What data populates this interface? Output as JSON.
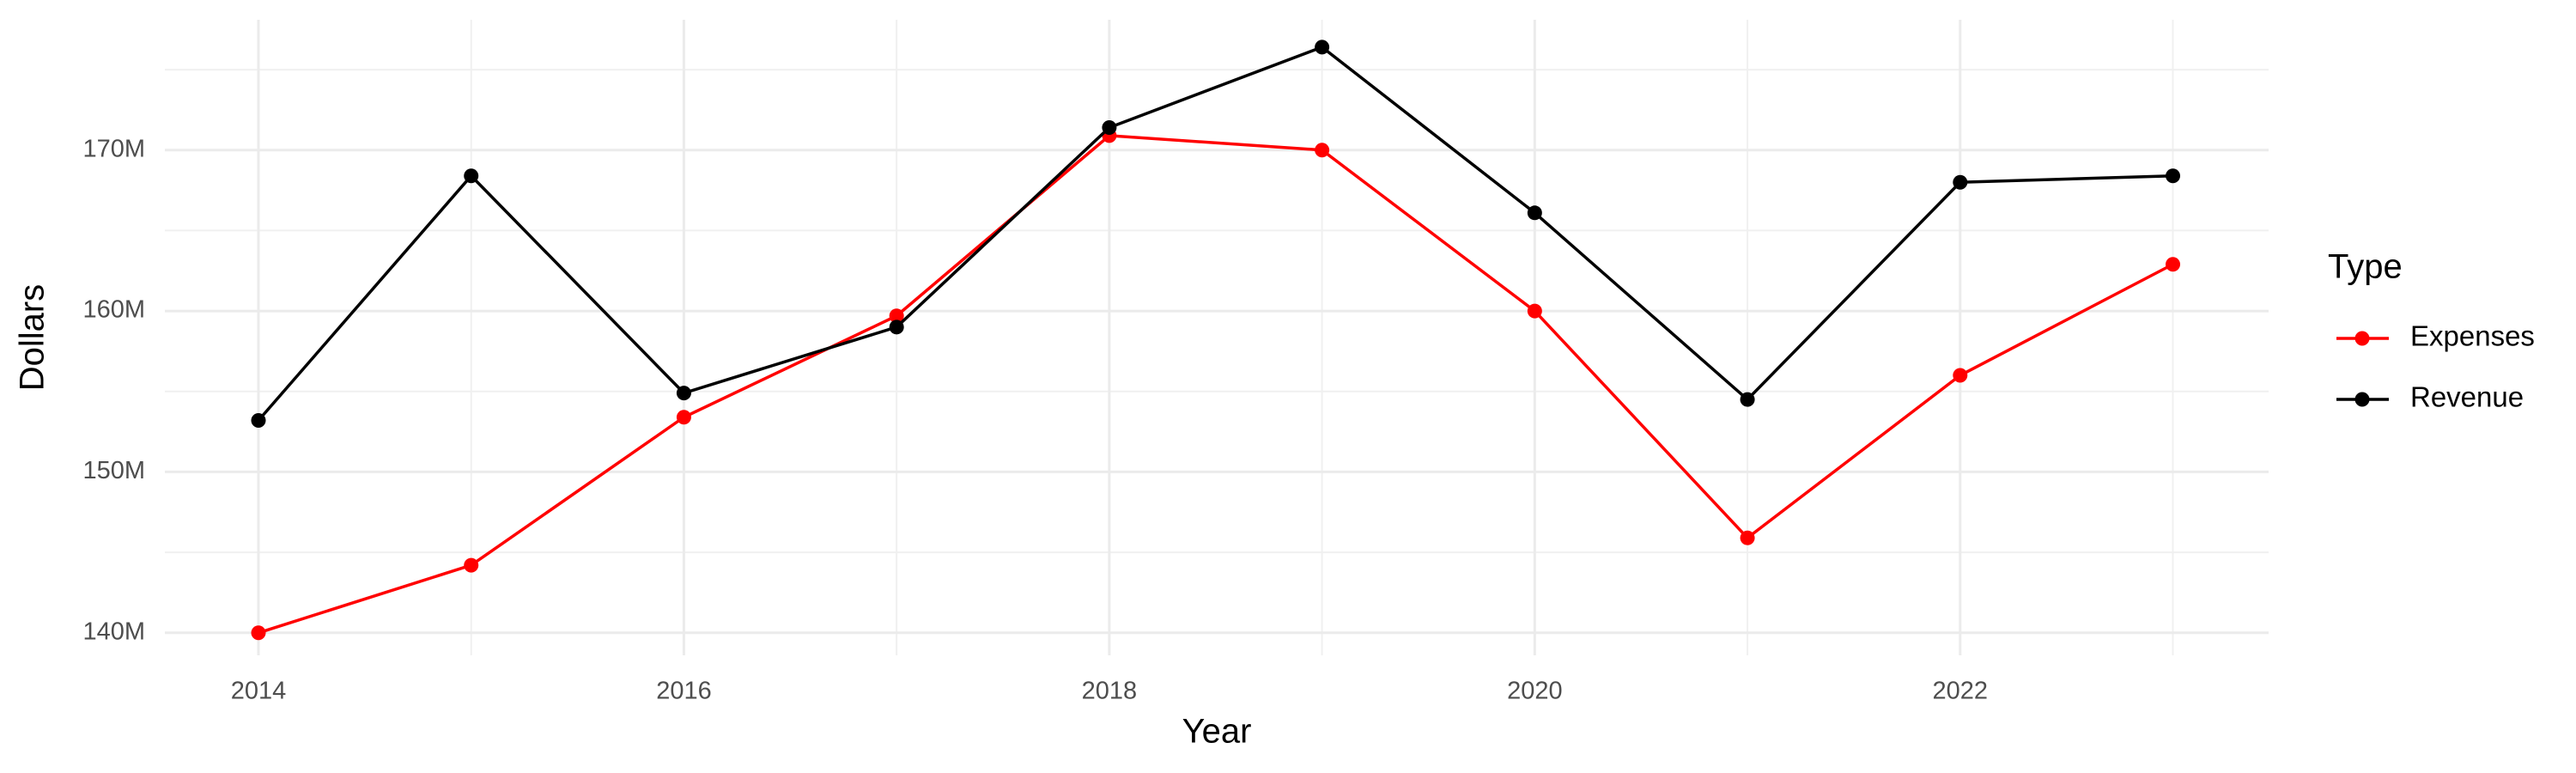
{
  "chart_data": {
    "type": "line",
    "x_label": "Year",
    "y_label": "Dollars",
    "legend_title": "Type",
    "x": [
      2014,
      2015,
      2016,
      2017,
      2018,
      2019,
      2020,
      2021,
      2022,
      2023
    ],
    "series": [
      {
        "name": "Expenses",
        "color": "#ff0000",
        "values": [
          140000000,
          144200000,
          153400000,
          159700000,
          170900000,
          170000000,
          160000000,
          145900000,
          156000000,
          162900000
        ]
      },
      {
        "name": "Revenue",
        "color": "#000000",
        "values": [
          153200000,
          168400000,
          154900000,
          159000000,
          171400000,
          176400000,
          166100000,
          154500000,
          168000000,
          168400000
        ]
      }
    ],
    "xlim": [
      2013.56,
      2023.45
    ],
    "xticks": [
      2014,
      2016,
      2018,
      2020,
      2022
    ],
    "ylim": [
      138600000,
      178100000
    ],
    "yticks": [
      {
        "value": 140000000,
        "label": "140M"
      },
      {
        "value": 150000000,
        "label": "150M"
      },
      {
        "value": 160000000,
        "label": "160M"
      },
      {
        "value": 170000000,
        "label": "170M"
      }
    ],
    "grid": true,
    "legend": "right"
  }
}
